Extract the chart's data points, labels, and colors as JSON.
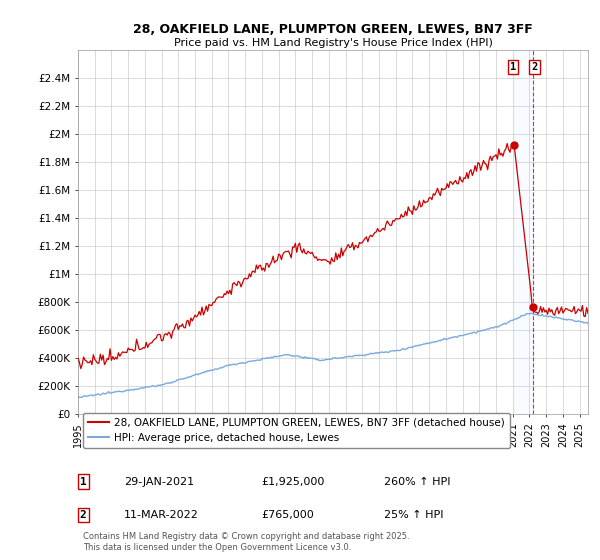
{
  "title_line1": "28, OAKFIELD LANE, PLUMPTON GREEN, LEWES, BN7 3FF",
  "title_line2": "Price paid vs. HM Land Registry's House Price Index (HPI)",
  "ylabel_ticks": [
    "£0",
    "£200K",
    "£400K",
    "£600K",
    "£800K",
    "£1M",
    "£1.2M",
    "£1.4M",
    "£1.6M",
    "£1.8M",
    "£2M",
    "£2.2M",
    "£2.4M"
  ],
  "ytick_vals": [
    0,
    200000,
    400000,
    600000,
    800000,
    1000000,
    1200000,
    1400000,
    1600000,
    1800000,
    2000000,
    2200000,
    2400000
  ],
  "ylim": [
    0,
    2600000
  ],
  "red_color": "#cc0000",
  "blue_color": "#7aaadd",
  "shade_color": "#ddeeff",
  "marker1_x": 2021.08,
  "marker2_x": 2022.19,
  "marker1_y": 1925000,
  "marker2_y": 765000,
  "marker1_label": "1",
  "marker2_label": "2",
  "annotation1": "29-JAN-2021",
  "annotation1_price": "£1,925,000",
  "annotation1_hpi": "260% ↑ HPI",
  "annotation2": "11-MAR-2022",
  "annotation2_price": "£765,000",
  "annotation2_hpi": "25% ↑ HPI",
  "legend_line1": "28, OAKFIELD LANE, PLUMPTON GREEN, LEWES, BN7 3FF (detached house)",
  "legend_line2": "HPI: Average price, detached house, Lewes",
  "footer": "Contains HM Land Registry data © Crown copyright and database right 2025.\nThis data is licensed under the Open Government Licence v3.0.",
  "xmin": 1995.0,
  "xmax": 2025.5
}
